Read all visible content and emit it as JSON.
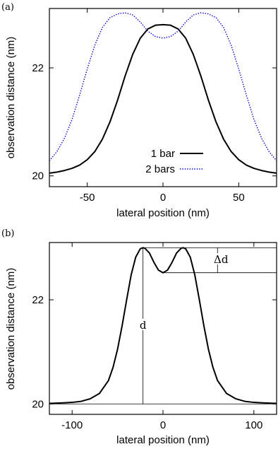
{
  "chart_data": [
    {
      "panel": "(a)",
      "type": "line",
      "xlabel": "lateral position (nm)",
      "ylabel": "observation distance (nm)",
      "xlim": [
        -75,
        75
      ],
      "ylim": [
        19.8,
        23.1
      ],
      "xticks": [
        -50,
        0,
        50
      ],
      "yticks": [
        20,
        22
      ],
      "grid": false,
      "legend_position": "bottom-center",
      "series": [
        {
          "name": "1 bar",
          "color": "#000000",
          "style": "solid",
          "x": [
            -75,
            -70,
            -65,
            -60,
            -55,
            -50,
            -45,
            -40,
            -35,
            -30,
            -25,
            -20,
            -15,
            -10,
            -5,
            0,
            5,
            10,
            15,
            20,
            25,
            30,
            35,
            40,
            45,
            50,
            55,
            60,
            65,
            70,
            75
          ],
          "y": [
            20.05,
            20.07,
            20.1,
            20.14,
            20.2,
            20.3,
            20.45,
            20.68,
            21.0,
            21.4,
            21.85,
            22.25,
            22.55,
            22.72,
            22.79,
            22.8,
            22.79,
            22.72,
            22.55,
            22.25,
            21.85,
            21.4,
            21.0,
            20.68,
            20.45,
            20.3,
            20.2,
            20.14,
            20.1,
            20.07,
            20.05
          ]
        },
        {
          "name": "2 bars",
          "color": "#0000cc",
          "style": "dotted",
          "x": [
            -75,
            -70,
            -65,
            -60,
            -55,
            -50,
            -45,
            -40,
            -35,
            -30,
            -25,
            -20,
            -15,
            -10,
            -5,
            0,
            5,
            10,
            15,
            20,
            25,
            30,
            35,
            40,
            45,
            50,
            55,
            60,
            65,
            70,
            75
          ],
          "y": [
            20.28,
            20.45,
            20.7,
            21.05,
            21.5,
            21.98,
            22.42,
            22.75,
            22.93,
            23.0,
            23.02,
            22.98,
            22.85,
            22.68,
            22.58,
            22.55,
            22.58,
            22.68,
            22.85,
            22.98,
            23.02,
            23.0,
            22.93,
            22.75,
            22.42,
            21.98,
            21.5,
            21.05,
            20.7,
            20.45,
            20.28
          ]
        }
      ]
    },
    {
      "panel": "(b)",
      "type": "line",
      "xlabel": "lateral position (nm)",
      "ylabel": "observation distance (nm)",
      "xlim": [
        -125,
        125
      ],
      "ylim": [
        19.8,
        23.1
      ],
      "xticks": [
        -100,
        0,
        100
      ],
      "yticks": [
        20,
        22
      ],
      "grid": false,
      "series": [
        {
          "color": "#000000",
          "style": "solid",
          "x": [
            -125,
            -110,
            -100,
            -90,
            -80,
            -70,
            -60,
            -55,
            -50,
            -45,
            -40,
            -35,
            -30,
            -25,
            -22,
            -20,
            -15,
            -10,
            -5,
            0,
            5,
            10,
            15,
            20,
            22,
            25,
            30,
            35,
            40,
            45,
            50,
            55,
            60,
            70,
            80,
            90,
            100,
            110,
            125
          ],
          "y": [
            20.01,
            20.02,
            20.03,
            20.05,
            20.1,
            20.2,
            20.45,
            20.7,
            21.05,
            21.5,
            22.0,
            22.48,
            22.82,
            22.98,
            23.0,
            22.99,
            22.9,
            22.72,
            22.57,
            22.52,
            22.57,
            22.72,
            22.9,
            22.99,
            23.0,
            22.98,
            22.82,
            22.48,
            22.0,
            21.5,
            21.05,
            20.7,
            20.45,
            20.2,
            20.1,
            20.05,
            20.03,
            20.02,
            20.01
          ]
        }
      ],
      "annotations": [
        {
          "label": "d",
          "type": "vertical-span",
          "x": -22,
          "y_from": 20.0,
          "y_to": 23.0
        },
        {
          "label": "Δd",
          "type": "vertical-span",
          "x": 60,
          "y_from": 22.52,
          "y_to": 23.0
        },
        {
          "type": "reference-line",
          "y": 23.0,
          "x_from": -22,
          "x_to": 125
        },
        {
          "type": "reference-line",
          "y": 22.52,
          "x_from": 0,
          "x_to": 125
        },
        {
          "type": "reference-line",
          "y": 20.0,
          "x_from": -125,
          "x_to": 125
        }
      ]
    }
  ]
}
